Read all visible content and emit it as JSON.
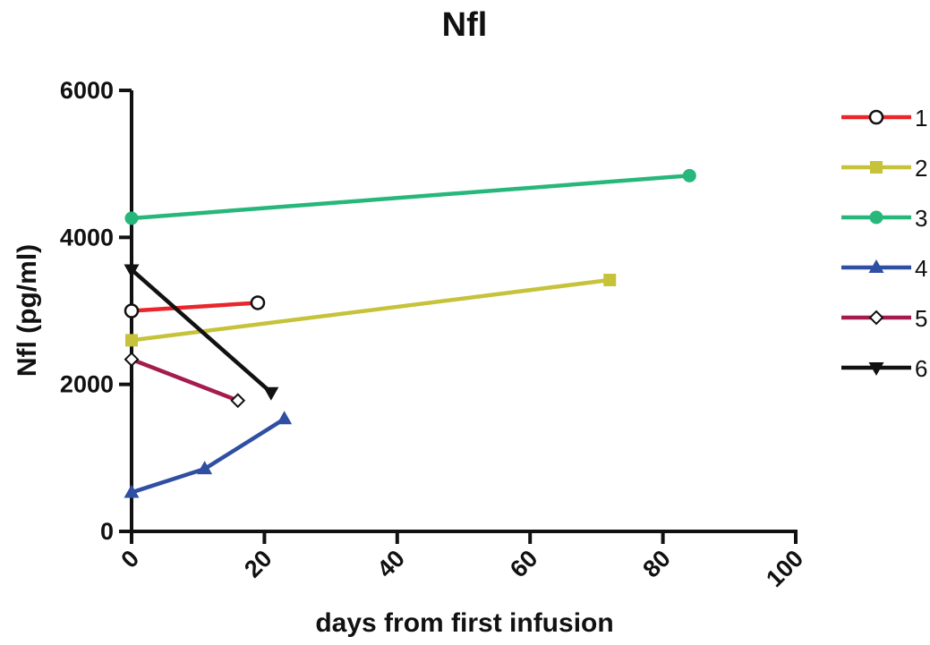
{
  "chart_data": {
    "type": "line",
    "title": "Nfl",
    "xlabel": "days from first infusion",
    "ylabel": "Nfl (pg/ml)",
    "xlim": [
      0,
      100
    ],
    "ylim": [
      0,
      6000
    ],
    "x_ticks": [
      "0",
      "20",
      "40",
      "60",
      "80",
      "100"
    ],
    "y_ticks": [
      "0",
      "2000",
      "4000",
      "6000"
    ],
    "grid": false,
    "legend_position": "right",
    "series": [
      {
        "name": "1",
        "color": "#e8262b",
        "marker": "open-circle",
        "points": [
          {
            "x": 0,
            "y": 3000
          },
          {
            "x": 19,
            "y": 3110
          }
        ]
      },
      {
        "name": "2",
        "color": "#c6c23a",
        "marker": "filled-square",
        "points": [
          {
            "x": 0,
            "y": 2600
          },
          {
            "x": 72,
            "y": 3420
          }
        ]
      },
      {
        "name": "3",
        "color": "#27b77a",
        "marker": "filled-circle",
        "points": [
          {
            "x": 0,
            "y": 4260
          },
          {
            "x": 84,
            "y": 4840
          }
        ]
      },
      {
        "name": "4",
        "color": "#2f4fa3",
        "marker": "filled-triangle-up",
        "points": [
          {
            "x": 0,
            "y": 530
          },
          {
            "x": 11,
            "y": 850
          },
          {
            "x": 23,
            "y": 1530
          }
        ]
      },
      {
        "name": "5",
        "color": "#a41c4e",
        "marker": "open-diamond",
        "points": [
          {
            "x": 0,
            "y": 2340
          },
          {
            "x": 16,
            "y": 1780
          }
        ]
      },
      {
        "name": "6",
        "color": "#111111",
        "marker": "filled-triangle-down",
        "points": [
          {
            "x": 0,
            "y": 3560
          },
          {
            "x": 21,
            "y": 1890
          }
        ]
      }
    ]
  }
}
